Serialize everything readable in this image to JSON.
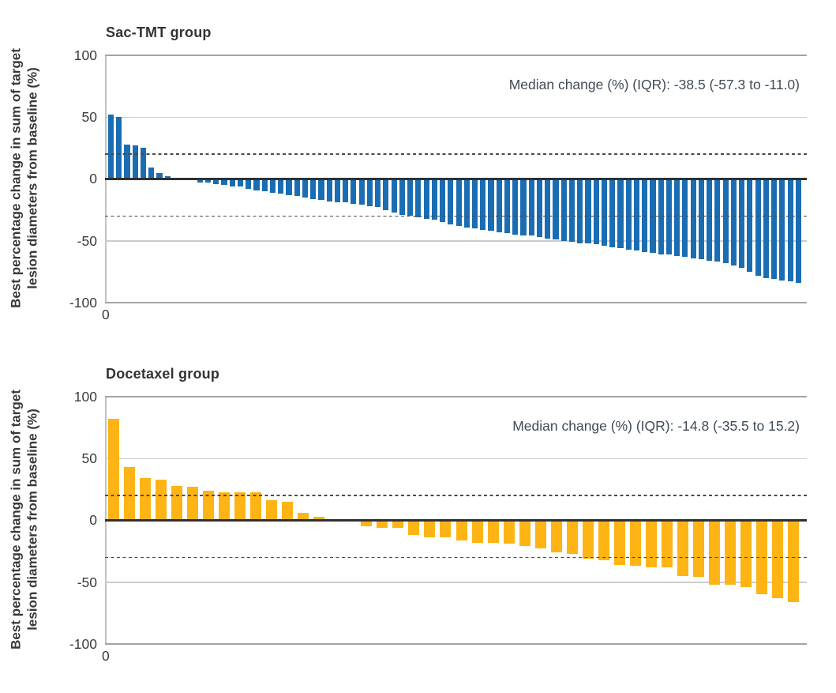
{
  "figure": {
    "background": "#ffffff",
    "text_color": "#383838",
    "annotation_color": "#414b55"
  },
  "chart_data": [
    {
      "type": "bar",
      "subtype": "waterfall",
      "title": "Sac-TMT group",
      "annotation": "Median change (%) (IQR): -38.5 (-57.3 to -11.0)",
      "ylabel_line1": "Best percentage change in sum of target",
      "ylabel_line2": "lesion diameters from baseline (%)",
      "ytick_labels": [
        "100",
        "50",
        "0",
        "-50",
        "-100"
      ],
      "x_first_tick": "0",
      "ylim": [
        -100,
        100
      ],
      "gridlines": [
        100,
        50,
        -50,
        -100
      ],
      "reference_lines_dashed": [
        20,
        -30
      ],
      "grid": "on",
      "bar_color": "#1a6db3",
      "values": [
        52,
        50,
        28,
        27,
        25,
        9,
        5,
        2,
        1,
        0.5,
        0,
        -3,
        -3,
        -4,
        -5,
        -6,
        -6,
        -8,
        -9,
        -10,
        -11,
        -12,
        -13,
        -14,
        -15,
        -16,
        -17,
        -18,
        -19,
        -19,
        -20,
        -21,
        -22,
        -23,
        -25,
        -27,
        -29,
        -30,
        -31,
        -32,
        -33,
        -35,
        -37,
        -38,
        -39,
        -40,
        -41,
        -42,
        -43,
        -44,
        -45,
        -46,
        -46,
        -47,
        -48,
        -49,
        -50,
        -51,
        -52,
        -52,
        -53,
        -54,
        -55,
        -56,
        -57,
        -58,
        -59,
        -60,
        -61,
        -61,
        -62,
        -63,
        -64,
        -65,
        -66,
        -67,
        -68,
        -70,
        -72,
        -75,
        -78,
        -80,
        -81,
        -82,
        -83,
        -84
      ]
    },
    {
      "type": "bar",
      "subtype": "waterfall",
      "title": "Docetaxel group",
      "annotation": "Median change (%) (IQR): -14.8 (-35.5 to 15.2)",
      "ylabel_line1": "Best percentage change in sum of target",
      "ylabel_line2": "lesion diameters from baseline (%)",
      "ytick_labels": [
        "100",
        "50",
        "0",
        "-50",
        "-100"
      ],
      "x_first_tick": "0",
      "ylim": [
        -100,
        100
      ],
      "gridlines": [
        100,
        50,
        -50,
        -100
      ],
      "reference_lines_dashed": [
        20,
        -30
      ],
      "grid": "on",
      "bar_color": "#fdb414",
      "values": [
        82,
        43,
        34,
        33,
        28,
        27,
        24,
        23,
        23,
        23,
        16,
        15,
        6,
        3,
        1,
        0,
        -5,
        -6,
        -6,
        -12,
        -14,
        -14,
        -16,
        -18,
        -18,
        -19,
        -21,
        -23,
        -26,
        -27,
        -31,
        -32,
        -36,
        -37,
        -38,
        -38,
        -45,
        -46,
        -52,
        -52,
        -54,
        -60,
        -63,
        -66
      ]
    }
  ]
}
